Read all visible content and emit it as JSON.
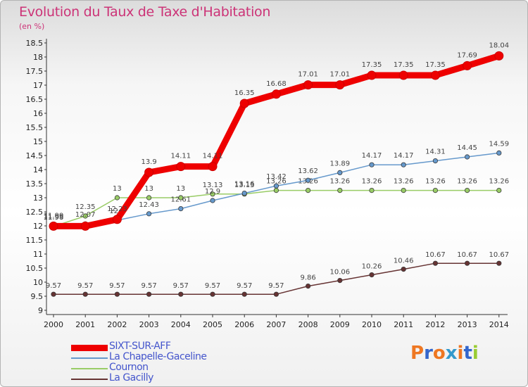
{
  "chart_data": {
    "type": "line",
    "title": "Evolution du Taux de Taxe d'Habitation",
    "unit_label": "(en %)",
    "x": [
      "2000",
      "2001",
      "2002",
      "2003",
      "2004",
      "2005",
      "2006",
      "2007",
      "2008",
      "2009",
      "2010",
      "2011",
      "2012",
      "2013",
      "2014"
    ],
    "ylim": [
      9,
      18.5
    ],
    "yticks": [
      "9",
      "9.5",
      "10",
      "10.5",
      "11",
      "11.5",
      "12",
      "12.5",
      "13",
      "13.5",
      "14",
      "14.5",
      "15",
      "15.5",
      "16",
      "16.5",
      "17",
      "17.5",
      "18",
      "18.5"
    ],
    "grid": false,
    "legend_position": "bottom-left",
    "series": [
      {
        "name": "SIXT-SUR-AFF",
        "color": "#ee0000",
        "values": [
          11.99,
          11.99,
          12.23,
          13.9,
          14.11,
          14.11,
          16.35,
          16.68,
          17.01,
          17.01,
          17.35,
          17.35,
          17.35,
          17.69,
          18.04
        ]
      },
      {
        "name": "La Chapelle-Gaceline",
        "color": "#6699cc",
        "values": [
          11.99,
          12.07,
          12.2,
          12.43,
          12.61,
          12.9,
          13.16,
          13.42,
          13.62,
          13.89,
          14.17,
          14.17,
          14.31,
          14.45,
          14.59
        ]
      },
      {
        "name": "Cournon",
        "color": "#99cc66",
        "values": [
          11.98,
          12.35,
          13.0,
          13.0,
          13.0,
          13.13,
          13.13,
          13.26,
          13.26,
          13.26,
          13.26,
          13.26,
          13.26,
          13.26,
          13.26
        ]
      },
      {
        "name": "La Gacilly",
        "color": "#663333",
        "values": [
          9.57,
          9.57,
          9.57,
          9.57,
          9.57,
          9.57,
          9.57,
          9.57,
          9.86,
          10.06,
          10.26,
          10.46,
          10.67,
          10.67,
          10.67
        ]
      }
    ],
    "data_labels": [
      [
        "11.99",
        "",
        "12.23",
        "13.9",
        "14.11",
        "14.11",
        "16.35",
        "16.68",
        "17.01",
        "17.01",
        "17.35",
        "17.35",
        "17.35",
        "17.69",
        "18.04"
      ],
      [
        "11.99",
        "12.07",
        "12.2",
        "12.43",
        "12.61",
        "12.9",
        "13.16",
        "13.42",
        "13.62",
        "13.89",
        "14.17",
        "14.17",
        "14.31",
        "14.45",
        "14.59"
      ],
      [
        "11.98",
        "12.35",
        "13",
        "13",
        "13",
        "13.13",
        "13.13",
        "13.26",
        "13.26",
        "13.26",
        "13.26",
        "13.26",
        "13.26",
        "13.26",
        "13.26"
      ],
      [
        "9.57",
        "9.57",
        "9.57",
        "9.57",
        "9.57",
        "9.57",
        "9.57",
        "9.57",
        "9.86",
        "10.06",
        "10.26",
        "10.46",
        "10.67",
        "10.67",
        "10.67"
      ]
    ]
  },
  "logo": {
    "text": "Proxiti",
    "colors": [
      "#ee7722",
      "#3366cc",
      "#ee7722",
      "#3399cc",
      "#ee7722",
      "#3366cc",
      "#99cc33"
    ]
  }
}
